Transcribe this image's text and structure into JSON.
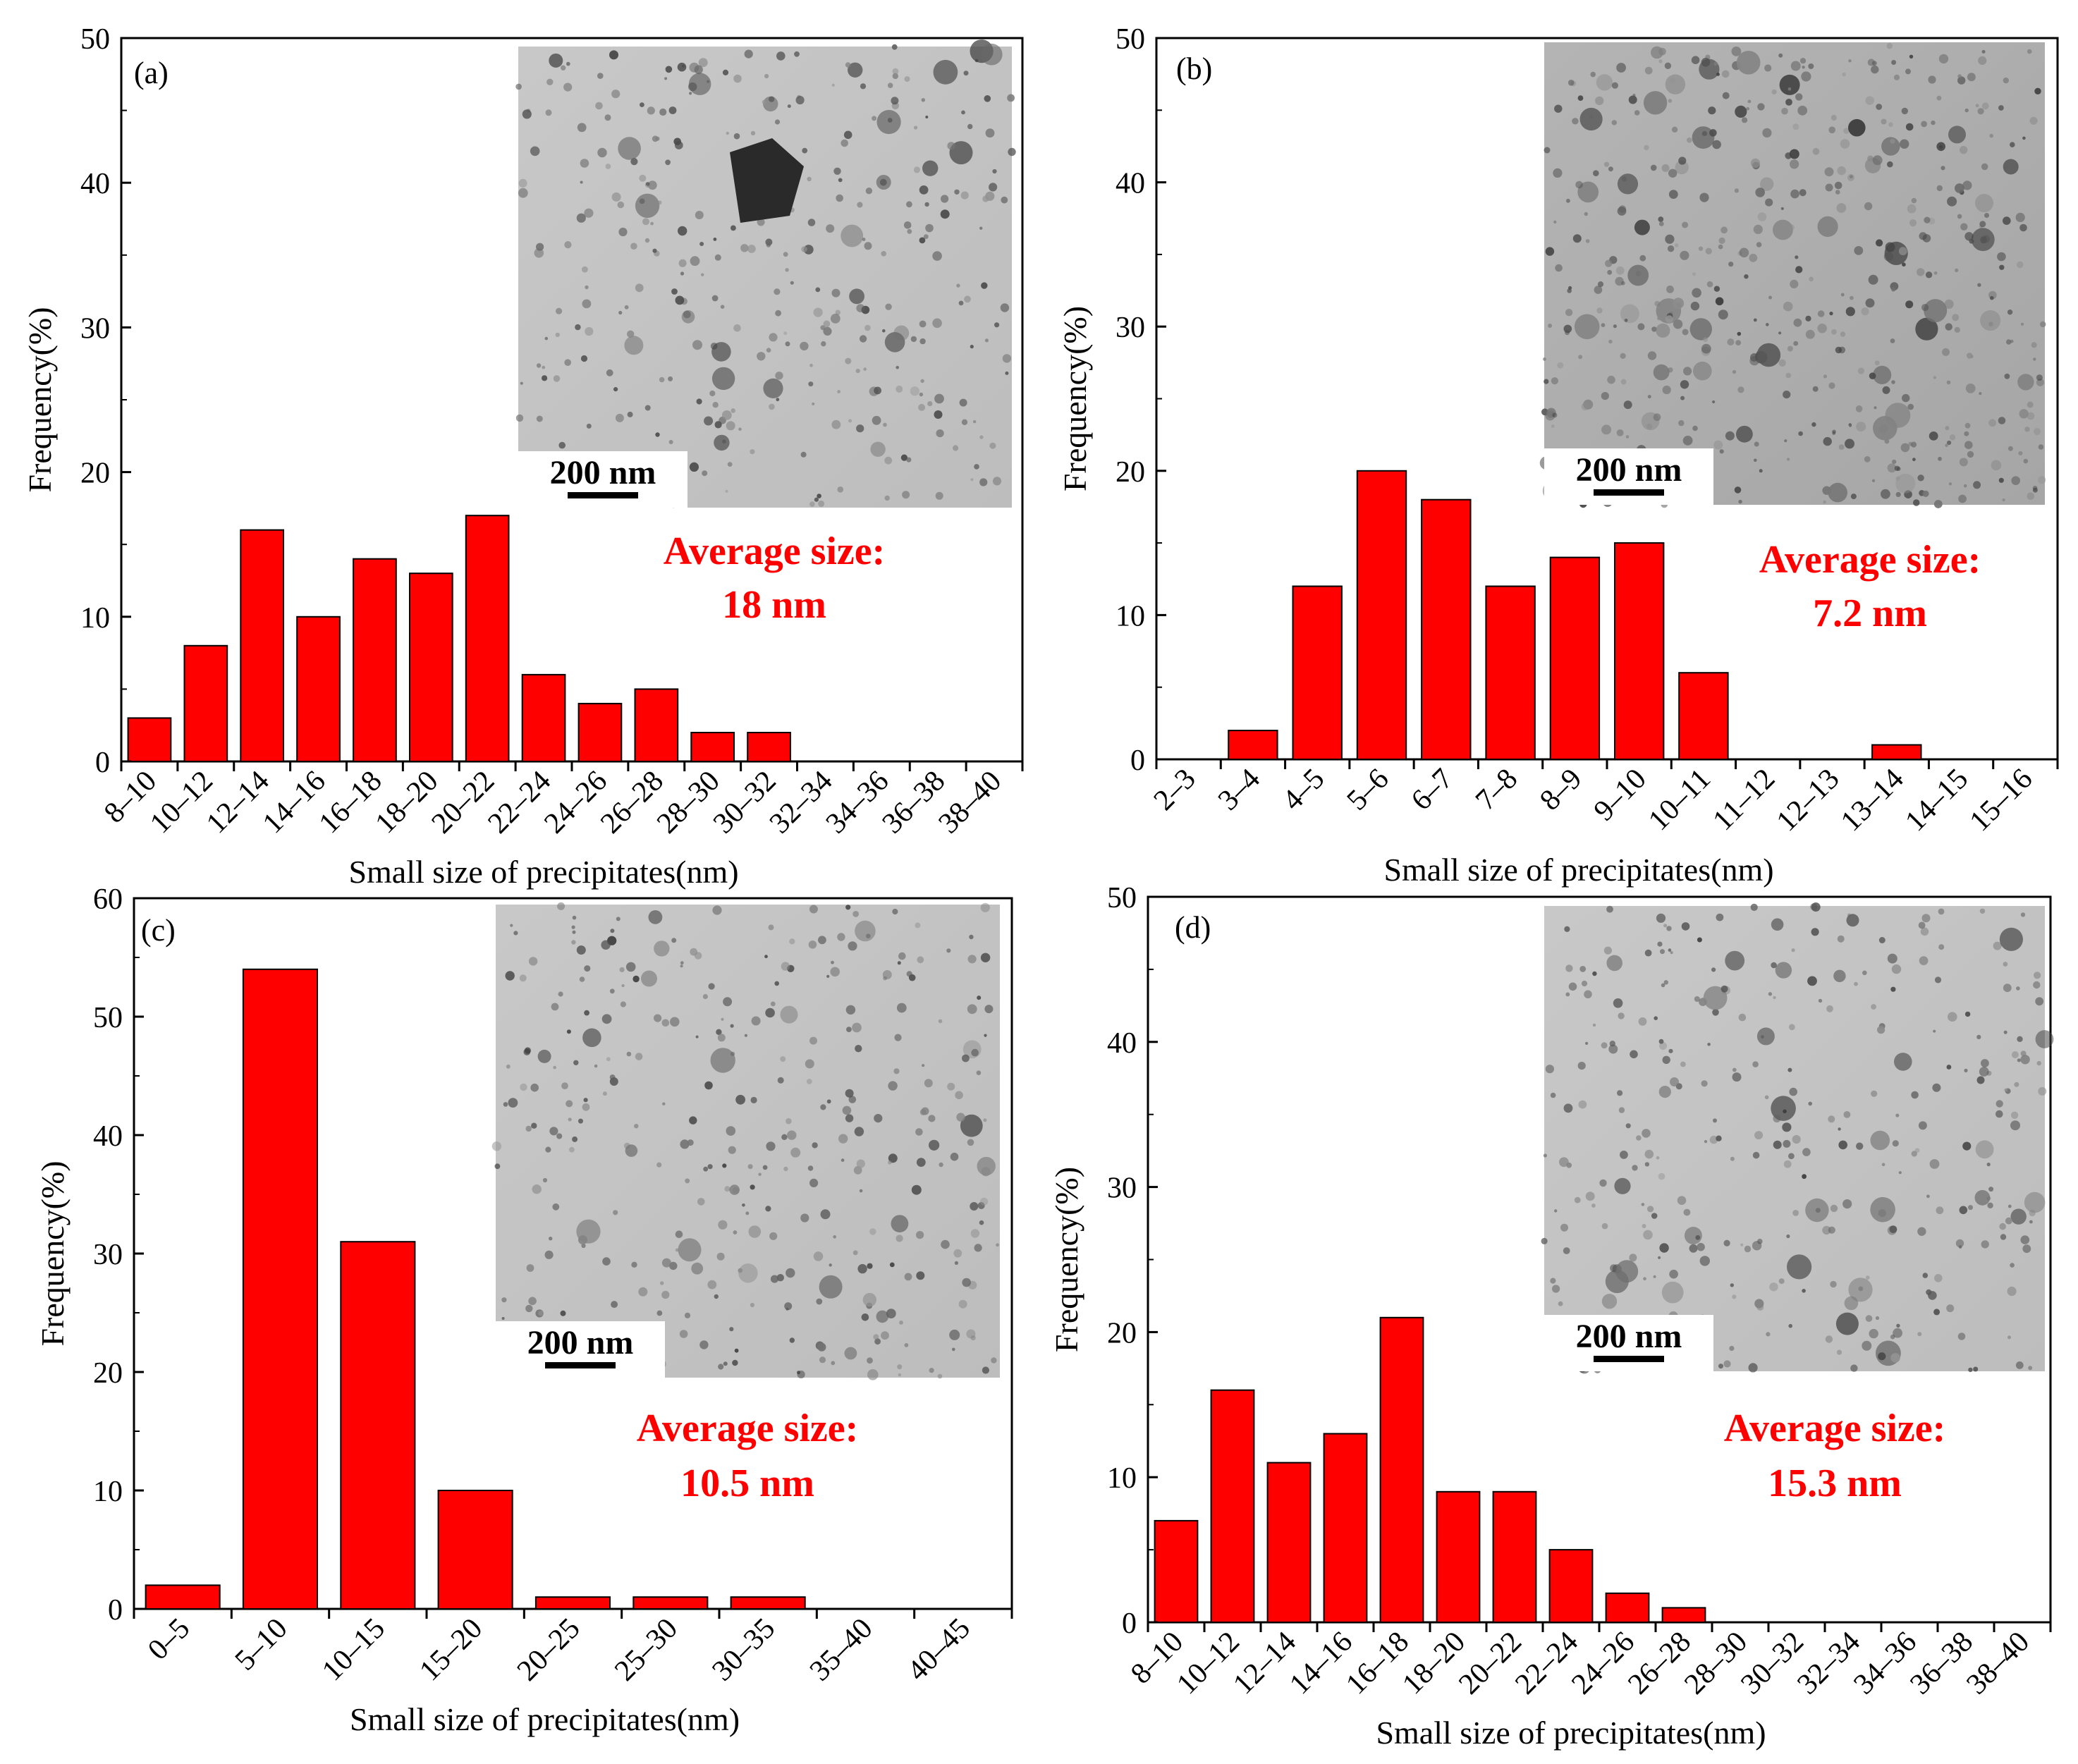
{
  "chart_data": [
    {
      "type": "bar",
      "panel_label": "(a)",
      "categories": [
        "8–10",
        "10–12",
        "12–14",
        "14–16",
        "16–18",
        "18–20",
        "20–22",
        "22–24",
        "24–26",
        "26–28",
        "28–30",
        "30–32",
        "32–34",
        "34–36",
        "36–38",
        "38–40"
      ],
      "values": [
        3,
        8,
        16,
        10,
        14,
        13,
        17,
        6,
        4,
        5,
        2,
        2,
        0,
        0,
        0,
        0
      ],
      "xlabel": "Small size of precipitates(nm)",
      "ylabel": "Frequency(%)",
      "ylim": [
        0,
        50
      ],
      "yticks": [
        0,
        10,
        20,
        30,
        40,
        50
      ],
      "average_label": "Average size:",
      "average_value": "18 nm",
      "scale_bar": "200 nm",
      "bar_color": "#ff0000"
    },
    {
      "type": "bar",
      "panel_label": "(b)",
      "categories": [
        "2–3",
        "3–4",
        "4–5",
        "5–6",
        "6–7",
        "7–8",
        "8–9",
        "9–10",
        "10–11",
        "11–12",
        "12–13",
        "13–14",
        "14–15",
        "15–16"
      ],
      "values": [
        0,
        2,
        12,
        20,
        18,
        12,
        14,
        15,
        6,
        0,
        0,
        1,
        0,
        0
      ],
      "xlabel": "Small size of precipitates(nm)",
      "ylabel": "Frequency(%)",
      "ylim": [
        0,
        50
      ],
      "yticks": [
        0,
        10,
        20,
        30,
        40,
        50
      ],
      "average_label": "Average size:",
      "average_value": "7.2 nm",
      "scale_bar": "200 nm",
      "bar_color": "#ff0000"
    },
    {
      "type": "bar",
      "panel_label": "(c)",
      "categories": [
        "0–5",
        "5–10",
        "10–15",
        "15–20",
        "20–25",
        "25–30",
        "30–35",
        "35–40",
        "40–45"
      ],
      "values": [
        2,
        54,
        31,
        10,
        1,
        1,
        1,
        0,
        0
      ],
      "xlabel": "Small size of precipitates(nm)",
      "ylabel": "Frequency(%)",
      "ylim": [
        0,
        60
      ],
      "yticks": [
        0,
        10,
        20,
        30,
        40,
        50,
        60
      ],
      "average_label": "Average size:",
      "average_value": "10.5 nm",
      "scale_bar": "200 nm",
      "bar_color": "#ff0000"
    },
    {
      "type": "bar",
      "panel_label": "(d)",
      "categories": [
        "8–10",
        "10–12",
        "12–14",
        "14–16",
        "16–18",
        "18–20",
        "20–22",
        "22–24",
        "24–26",
        "26–28",
        "28–30",
        "30–32",
        "32–34",
        "34–36",
        "36–38",
        "38–40"
      ],
      "values": [
        7,
        16,
        11,
        13,
        21,
        9,
        9,
        5,
        2,
        1,
        0,
        0,
        0,
        0,
        0,
        0
      ],
      "xlabel": "Small size of precipitates(nm)",
      "ylabel": "Frequency(%)",
      "ylim": [
        0,
        50
      ],
      "yticks": [
        0,
        10,
        20,
        30,
        40,
        50
      ],
      "average_label": "Average size:",
      "average_value": "15.3 nm",
      "scale_bar": "200 nm",
      "bar_color": "#ff0000"
    }
  ]
}
